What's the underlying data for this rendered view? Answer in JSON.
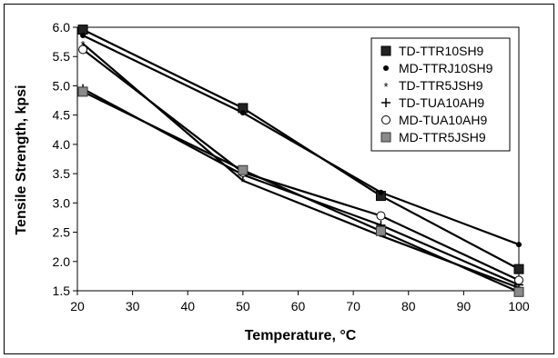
{
  "chart_data": {
    "type": "line",
    "xlabel": "Temperature, °C",
    "ylabel": "Tensile Strength, kpsi",
    "xlim": [
      20,
      100
    ],
    "ylim": [
      1.5,
      6.0
    ],
    "x_ticks": [
      "20",
      "30",
      "40",
      "50",
      "60",
      "70",
      "80",
      "90",
      "100"
    ],
    "y_ticks": [
      "1.5",
      "2.0",
      "2.5",
      "3.0",
      "3.5",
      "4.0",
      "4.5",
      "5.0",
      "5.5",
      "6.0"
    ],
    "grid": false,
    "legend_position": "top-right",
    "x": [
      21,
      50,
      75,
      100
    ],
    "series": [
      {
        "name": "TD-TTR10SH9",
        "marker": "square-black",
        "values": [
          5.96,
          4.62,
          3.12,
          1.87
        ]
      },
      {
        "name": "MD-TTRJ10SH9",
        "marker": "dot",
        "values": [
          5.86,
          4.54,
          3.18,
          2.29
        ]
      },
      {
        "name": "TD-TTR5JSH9",
        "marker": "asterisk",
        "values": [
          5.72,
          3.38,
          2.44,
          1.55
        ]
      },
      {
        "name": "TD-TUA10AH9",
        "marker": "plus",
        "values": [
          4.95,
          3.48,
          2.62,
          1.6
        ]
      },
      {
        "name": "MD-TUA10AH9",
        "marker": "circle-open",
        "values": [
          5.62,
          3.52,
          2.78,
          1.68
        ]
      },
      {
        "name": "MD-TTR5JSH9",
        "marker": "square-gray",
        "values": [
          4.9,
          3.56,
          2.52,
          1.48
        ]
      }
    ]
  }
}
